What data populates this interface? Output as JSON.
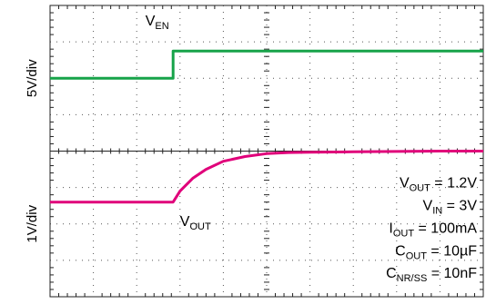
{
  "chart_data": {
    "type": "line",
    "title": "",
    "xlabel": "",
    "grid": true,
    "x_divisions": 10,
    "y_divisions": 8,
    "grid_color": "#555555",
    "channels": [
      {
        "label": "5V/div"
      },
      {
        "label": "1V/div"
      }
    ],
    "series": [
      {
        "name_main": "V",
        "name_sub": "EN",
        "color": "#17a349",
        "x_div": [
          0,
          2.84,
          2.84,
          10
        ],
        "y_div": [
          6.0,
          6.0,
          6.75,
          6.75
        ]
      },
      {
        "name_main": "V",
        "name_sub": "OUT",
        "color": "#e0007a",
        "x_div": [
          0,
          2.84,
          3.0,
          3.3,
          3.6,
          4.0,
          4.5,
          5.0,
          5.5,
          6.0,
          7.0,
          8.0,
          9.0,
          10.0
        ],
        "y_div": [
          2.6,
          2.6,
          2.9,
          3.26,
          3.5,
          3.72,
          3.85,
          3.93,
          3.96,
          3.97,
          3.98,
          3.99,
          4.0,
          4.0
        ]
      }
    ],
    "conditions": [
      {
        "main": "V",
        "sub": "OUT",
        "rest": " = 1.2V"
      },
      {
        "main": "V",
        "sub": "IN",
        "rest": " = 3V"
      },
      {
        "main": "I",
        "sub": "OUT",
        "rest": " = 100mA"
      },
      {
        "main": "C",
        "sub": "OUT",
        "rest": " = 10µF"
      },
      {
        "main": "C",
        "sub": "NR/SS",
        "rest": " = 10nF"
      }
    ]
  }
}
